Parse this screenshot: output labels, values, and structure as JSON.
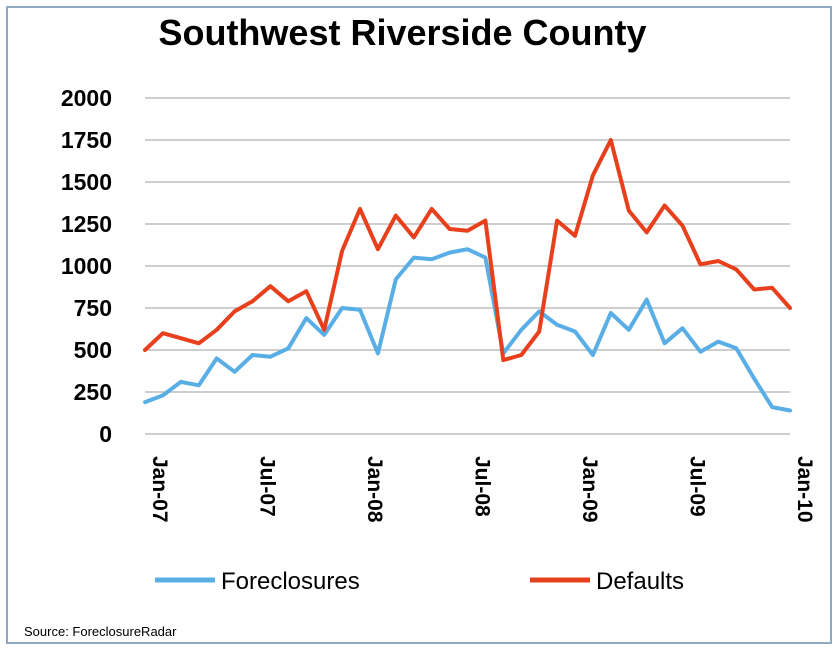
{
  "chart_data": {
    "type": "line",
    "title": "Southwest Riverside County",
    "source": "Source: ForeclosureRadar",
    "ylim": [
      0,
      2000
    ],
    "yticks": [
      "0",
      "250",
      "500",
      "750",
      "1000",
      "1250",
      "1500",
      "1750",
      "2000"
    ],
    "x_tick_labels": [
      "Jan-07",
      "Jul-07",
      "Jan-08",
      "Jul-08",
      "Jan-09",
      "Jul-09",
      "Jan-10"
    ],
    "x_tick_month_index": [
      0,
      6,
      12,
      18,
      24,
      30,
      36
    ],
    "grid": true,
    "legend_position": "bottom",
    "months": [
      "Jan-07",
      "Feb-07",
      "Mar-07",
      "Apr-07",
      "May-07",
      "Jun-07",
      "Jul-07",
      "Aug-07",
      "Sep-07",
      "Oct-07",
      "Nov-07",
      "Dec-07",
      "Jan-08",
      "Feb-08",
      "Mar-08",
      "Apr-08",
      "May-08",
      "Jun-08",
      "Jul-08",
      "Aug-08",
      "Sep-08",
      "Oct-08",
      "Nov-08",
      "Dec-08",
      "Jan-09",
      "Feb-09",
      "Mar-09",
      "Apr-09",
      "May-09",
      "Jun-09",
      "Jul-09",
      "Aug-09",
      "Sep-09",
      "Oct-09",
      "Nov-09",
      "Dec-09",
      "Jan-10"
    ],
    "series": [
      {
        "name": "Foreclosures",
        "color": "#5aaee6",
        "values": [
          190,
          230,
          310,
          290,
          450,
          370,
          470,
          460,
          510,
          690,
          590,
          750,
          740,
          480,
          920,
          1050,
          1040,
          1080,
          1100,
          1050,
          480,
          620,
          730,
          650,
          610,
          470,
          720,
          620,
          800,
          540,
          630,
          490,
          550,
          510,
          330,
          160,
          140
        ]
      },
      {
        "name": "Defaults",
        "color": "#e8401c",
        "values": [
          500,
          600,
          570,
          540,
          620,
          730,
          790,
          880,
          790,
          850,
          620,
          1090,
          1340,
          1100,
          1300,
          1170,
          1340,
          1220,
          1210,
          1270,
          440,
          470,
          610,
          1270,
          1180,
          1540,
          1750,
          1330,
          1200,
          1360,
          1240,
          1010,
          1030,
          980,
          860,
          870,
          750
        ]
      }
    ]
  }
}
